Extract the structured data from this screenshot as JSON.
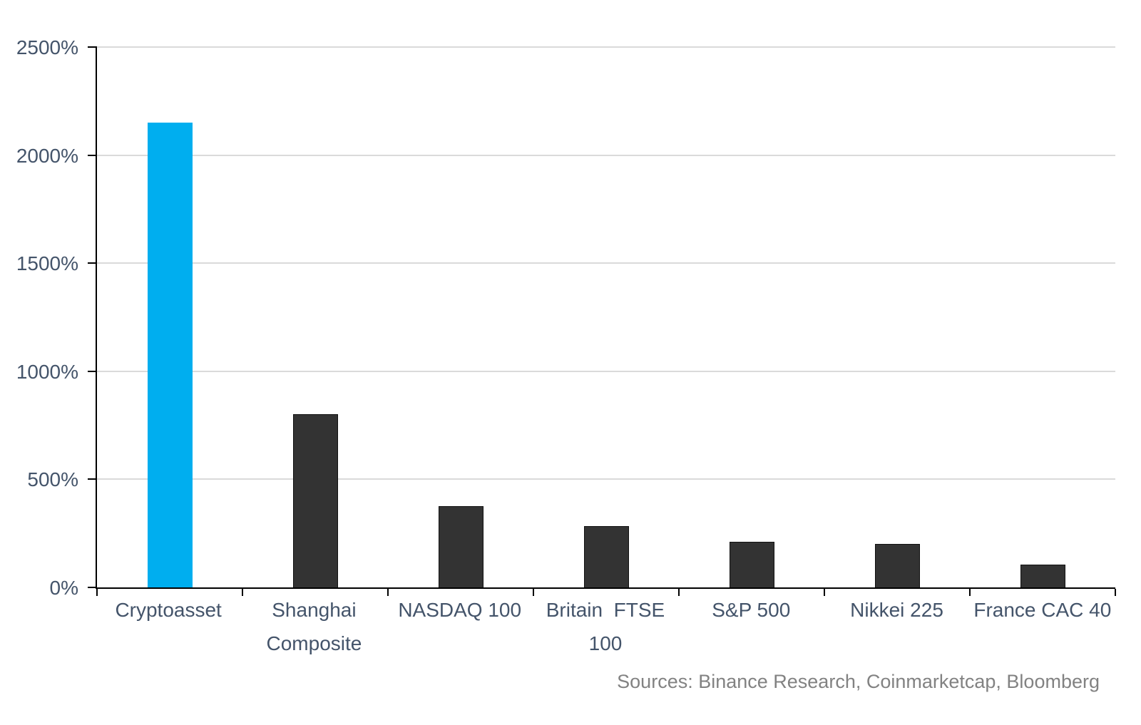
{
  "chart_data": {
    "type": "bar",
    "categories": [
      "Cryptoasset",
      "Shanghai\nComposite",
      "NASDAQ 100",
      "Britain  FTSE\n100",
      "S&P 500",
      "Nikkei 225",
      "France CAC 40"
    ],
    "values": [
      2150,
      800,
      375,
      285,
      210,
      200,
      105
    ],
    "unit": "%",
    "title": "",
    "xlabel": "",
    "ylabel": "",
    "ylim": [
      0,
      2500
    ],
    "yticks": [
      0,
      500,
      1000,
      1500,
      2000,
      2500
    ],
    "ytick_labels": [
      "0%",
      "500%",
      "1000%",
      "1500%",
      "2000%",
      "2500%"
    ],
    "grid": true,
    "legend": "none",
    "bar_colors": [
      "#00AEEF",
      "#333333",
      "#333333",
      "#333333",
      "#333333",
      "#333333",
      "#333333"
    ],
    "highlight_color": "#00AEEF",
    "bar_default_color": "#333333",
    "axis_label_color": "#44546A",
    "gridline_color": "#dadada",
    "source_note": "Sources: Binance Research, Coinmarketcap, Bloomberg"
  }
}
